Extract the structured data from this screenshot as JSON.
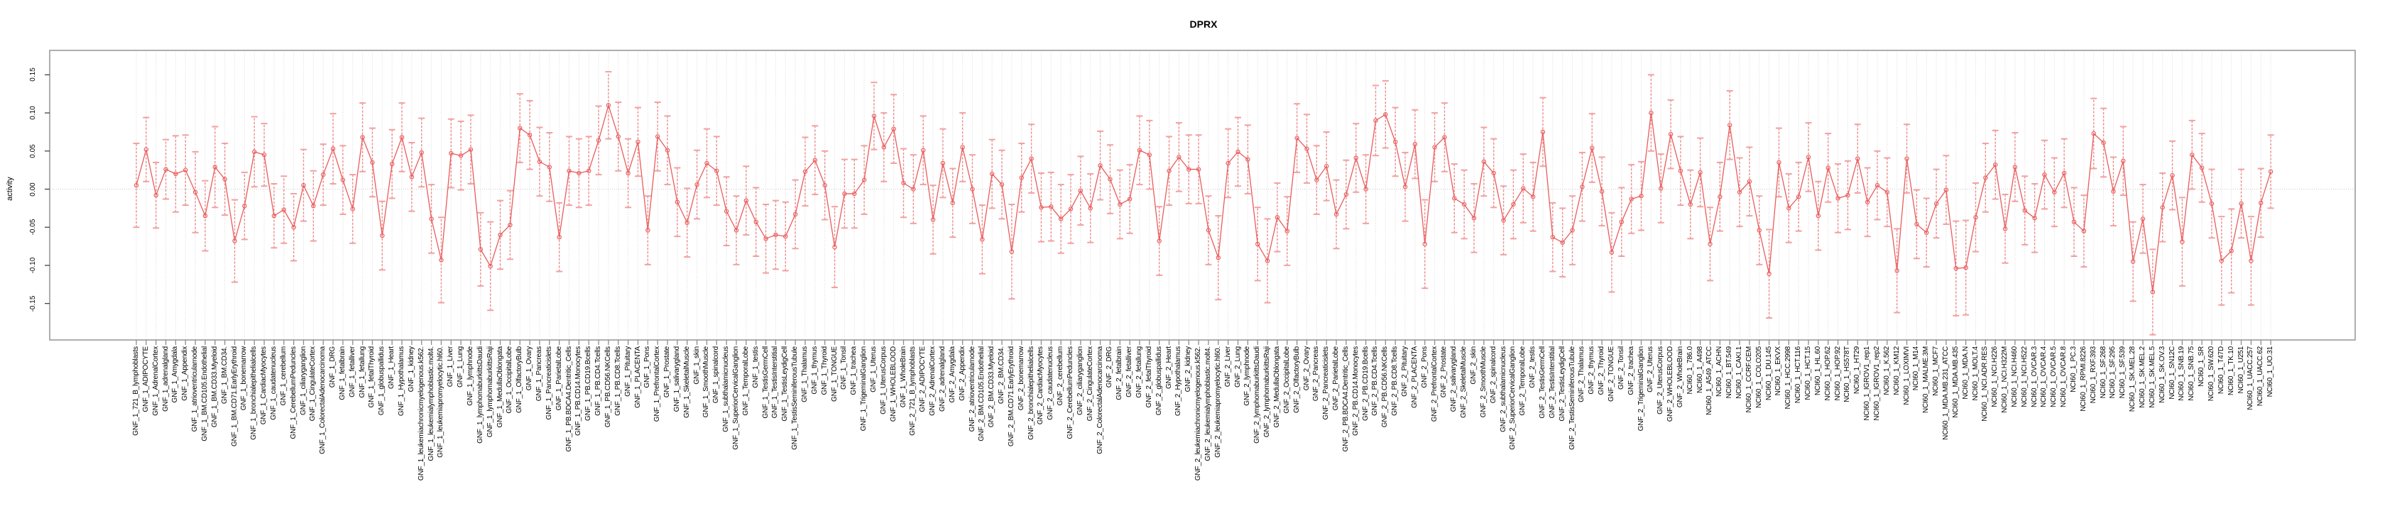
{
  "title": "DPRX",
  "chart_data": {
    "type": "line",
    "title": "DPRX",
    "xlabel": "",
    "ylabel": "activity",
    "ylim": [
      -0.198,
      0.182
    ],
    "yticks": [
      0.15,
      0.1,
      0.05,
      0.0,
      -0.05,
      -0.1,
      -0.15
    ],
    "ytick_labels": [
      "0.15",
      "0.10",
      "0.05",
      "0.00",
      "-0.05",
      "-0.10",
      "-0.15"
    ],
    "grid": "vertical dotted gridline per category; dotted horizontal line at y=0",
    "legend": "none",
    "marker": "open-circle",
    "error_bars": true,
    "colors": {
      "line": "#e95c5c",
      "marker": "#e95c5c",
      "error_bar": "#f2a0a0",
      "error_stem": "#ef8b8b",
      "grid": "#d9d9d9",
      "zero_line": "#c9c9c9",
      "box": "#9a9a9a",
      "x_tick": "#8c8c8c",
      "y_tick": "#444444",
      "text": "#000000",
      "background": "#ffffff"
    },
    "categories": [
      "GNF_1_721_B_lymphoblasts",
      "GNF_1_ADIPOCYTE",
      "GNF_1_AdrenalCortex",
      "GNF_1_adrenalgland",
      "GNF_1_Amygdala",
      "GNF_1_Appendix",
      "GNF_1_atrioventricularnode",
      "GNF_1_BM.CD105.Endothelial",
      "GNF_1_BM.CD33.Myeloid",
      "GNF_1_BM.CD34.",
      "GNF_1_BM.CD71.EarlyErythroid",
      "GNF_1_bonemarrow",
      "GNF_1_bronchialepithelialcells",
      "GNF_1_CardiacMyocytes",
      "GNF_1_caudatenucleus",
      "GNF_1_cerebellum",
      "GNF_1_CerebellumPeduncles",
      "GNF_1_ciliaryganglion",
      "GNF_1_CingulateCortex",
      "GNF_1_ColorectalAdenocarcinoma",
      "GNF_1_DRG",
      "GNF_1_fetalbrain",
      "GNF_1_fetalliver",
      "GNF_1_fetallung",
      "GNF_1_fetalThyroid",
      "GNF_1_globuspallidus",
      "GNF_1_Heart",
      "GNF_1_Hypothalamus",
      "GNF_1_kidney",
      "GNF_1_leukemiachronicmyelogenous.k562.",
      "GNF_1_leukemialymphoblastic.molt4.",
      "GNF_1_leukemiapromyelocytic.hl60.",
      "GNF_1_Liver",
      "GNF_1_Lung",
      "GNF_1_lymphnode",
      "GNF_1_lymphomaburkittsDaudi",
      "GNF_1_lymphomaburkittsRaji",
      "GNF_1_MedullaOblongata",
      "GNF_1_OccipitalLobe",
      "GNF_1_OlfactoryBulb",
      "GNF_1_Ovary",
      "GNF_1_Pancreas",
      "GNF_1_Pancreaticislets",
      "GNF_1_ParietalLobe",
      "GNF_1_PB.BDCA4.Dentritic_Cells",
      "GNF_1_PB.CD14.Monocytes",
      "GNF_1_PB.CD19.Bcells",
      "GNF_1_PB.CD4.Tcells",
      "GNF_1_PB.CD56.NKCells",
      "GNF_1_PB.CD8.Tcells",
      "GNF_1_Pituitary",
      "GNF_1_PLACENTA",
      "GNF_1_Pons",
      "GNF_1_PrefrontalCortex",
      "GNF_1_Prostate",
      "GNF_1_salivarygland",
      "GNF_1_SkeletalMuscle",
      "GNF_1_skin",
      "GNF_1_SmoothMuscle",
      "GNF_1_spinalcord",
      "GNF_1_subthalamicnucleus",
      "GNF_1_SuperiorCervicalGanglion",
      "GNF_1_TemporalLobe",
      "GNF_1_testis",
      "GNF_1_TestisGermCell",
      "GNF_1_TestisInterstitial",
      "GNF_1_TestisLeydigCell",
      "GNF_1_TestisSeminiferousTubule",
      "GNF_1_Thalamus",
      "GNF_1_thymus",
      "GNF_1_Thyroid",
      "GNF_1_TONGUE",
      "GNF_1_Tonsil",
      "GNF_1_trachea",
      "GNF_1_TrigeminalGanglion",
      "GNF_1_Uterus",
      "GNF_1_UterusCorpus",
      "GNF_1_WHOLEBLOOD",
      "GNF_1_WholeBrain",
      "GNF_2_721_B_lymphoblasts",
      "GNF_2_ADIPOCYTE",
      "GNF_2_AdrenalCortex",
      "GNF_2_adrenalgland",
      "GNF_2_Amygdala",
      "GNF_2_Appendix",
      "GNF_2_atrioventricularnode",
      "GNF_2_BM.CD105.Endothelial",
      "GNF_2_BM.CD33.Myeloid",
      "GNF_2_BM.CD34.",
      "GNF_2_BM.CD71.EarlyErythroid",
      "GNF_2_bonemarrow",
      "GNF_2_bronchialepithelialcells",
      "GNF_2_CardiacMyocytes",
      "GNF_2_caudatenucleus",
      "GNF_2_cerebellum",
      "GNF_2_CerebellumPeduncles",
      "GNF_2_ciliaryganglion",
      "GNF_2_CingulateCortex",
      "GNF_2_ColorectalAdenocarcinoma",
      "GNF_2_DRG",
      "GNF_2_fetalbrain",
      "GNF_2_fetalliver",
      "GNF_2_fetallung",
      "GNF_2_fetalThyroid",
      "GNF_2_globuspallidus",
      "GNF_2_Heart",
      "GNF_2_Hypothalamus",
      "GNF_2_kidney",
      "GNF_2_leukemiachronicmyelogenous.k562.",
      "GNF_2_leukemialymphoblastic.molt4.",
      "GNF_2_leukemiapromyelocytic.hl60.",
      "GNF_2_Liver",
      "GNF_2_Lung",
      "GNF_2_lymphnode",
      "GNF_2_lymphomaburkittsDaudi",
      "GNF_2_lymphomaburkittsRaji",
      "GNF_2_MedullaOblongata",
      "GNF_2_OccipitalLobe",
      "GNF_2_OlfactoryBulb",
      "GNF_2_Ovary",
      "GNF_2_Pancreas",
      "GNF_2_Pancreaticislets",
      "GNF_2_ParietalLobe",
      "GNF_2_PB.BDCA4.Dentritic_Cells",
      "GNF_2_PB.CD14.Monocytes",
      "GNF_2_PB.CD19.Bcells",
      "GNF_2_PB.CD4.Tcells",
      "GNF_2_PB.CD56.NKCells",
      "GNF_2_PB.CD8.Tcells",
      "GNF_2_Pituitary",
      "GNF_2_PLACENTA",
      "GNF_2_Pons",
      "GNF_2_PrefrontalCortex",
      "GNF_2_Prostate",
      "GNF_2_salivarygland",
      "GNF_2_SkeletalMuscle",
      "GNF_2_skin",
      "GNF_2_SmoothMuscle",
      "GNF_2_spinalcord",
      "GNF_2_subthalamicnucleus",
      "GNF_2_SuperiorCervicalGanglion",
      "GNF_2_TemporalLobe",
      "GNF_2_testis",
      "GNF_2_TestisGermCell",
      "GNF_2_TestisInterstitial",
      "GNF_2_TestisLeydigCell",
      "GNF_2_TestisSeminiferousTubule",
      "GNF_2_Thalamus",
      "GNF_2_thymus",
      "GNF_2_Thyroid",
      "GNF_2_TONGUE",
      "GNF_2_Tonsil",
      "GNF_2_trachea",
      "GNF_2_TrigeminalGanglion",
      "GNF_2_Uterus",
      "GNF_2_UterusCorpus",
      "GNF_2_WHOLEBLOOD",
      "GNF_2_WholeBrain",
      "NCI60_1_786.0",
      "NCI60_1_A498",
      "NCI60_1_A549_ATCC",
      "NCI60_1_ACHN",
      "NCI60_1_BT.549",
      "NCI60_1_CAKI.1",
      "NCI60_1_CCRF.CEM",
      "NCI60_1_COLO205",
      "NCI60_1_DU.145",
      "NCI60_1_EKVX",
      "NCI60_1_HCC.2998",
      "NCI60_1_HCT.116",
      "NCI60_1_HCT.15",
      "NCI60_1_HL.60",
      "NCI60_1_HOP.62",
      "NCI60_1_HOP.92",
      "NCI60_1_HS578T",
      "NCI60_1_HT29",
      "NCI60_1_IGROV1_rep1",
      "NCI60_1_IGROV1_rep2",
      "NCI60_1_K.562",
      "NCI60_1_KM12",
      "NCI60_1_LOXIMVI",
      "NCI60_1_M14",
      "NCI60_1_MALME.3M",
      "NCI60_1_MCF7",
      "NCI60_1_MDA.MB.231_ATCC",
      "NCI60_1_MDA.MB.435",
      "NCI60_1_MDA.N",
      "NCI60_1_MOLT.4",
      "NCI60_1_NCI.ADR.RES",
      "NCI60_1_NCI.H226",
      "NCI60_1_NCI.H322M",
      "NCI60_1_NCI.H460",
      "NCI60_1_NCI.H522",
      "NCI60_1_OVCAR.3",
      "NCI60_1_OVCAR.4",
      "NCI60_1_OVCAR.5",
      "NCI60_1_OVCAR.8",
      "NCI60_1_PC.3",
      "NCI60_1_RPMI.8226",
      "NCI60_1_RXF.393",
      "NCI60_1_SF.268",
      "NCI60_1_SF.295",
      "NCI60_1_SF.539",
      "NCI60_1_SK.MEL.28",
      "NCI60_1_SK.MEL.2",
      "NCI60_1_SK.MEL.5",
      "NCI60_1_SK.OV.3",
      "NCI60_1_SN12C",
      "NCI60_1_SNB.19",
      "NCI60_1_SNB.75",
      "NCI60_1_SR",
      "NCI60_1_SW.620",
      "NCI60_1_T47D",
      "NCI60_1_TK.10",
      "NCI60_1_U251",
      "NCI60_1_UACC.257",
      "NCI60_1_UACC.62",
      "NCI60_1_UO.31"
    ],
    "values": [
      0.005,
      0.052,
      -0.008,
      0.026,
      0.02,
      0.025,
      -0.004,
      -0.035,
      0.029,
      0.013,
      -0.068,
      -0.022,
      0.049,
      0.045,
      -0.035,
      -0.027,
      -0.05,
      0.005,
      -0.022,
      0.019,
      0.053,
      0.012,
      -0.026,
      0.068,
      0.035,
      -0.061,
      0.033,
      0.068,
      0.016,
      0.048,
      -0.039,
      -0.093,
      0.047,
      0.044,
      0.052,
      -0.079,
      -0.101,
      -0.06,
      -0.047,
      0.08,
      0.071,
      0.036,
      0.029,
      -0.063,
      0.024,
      0.021,
      0.024,
      0.064,
      0.11,
      0.069,
      0.021,
      0.062,
      -0.054,
      0.069,
      0.051,
      -0.017,
      -0.044,
      0.006,
      0.034,
      0.024,
      -0.029,
      -0.054,
      -0.015,
      -0.043,
      -0.065,
      -0.06,
      -0.062,
      -0.033,
      0.023,
      0.038,
      0.005,
      -0.076,
      -0.006,
      -0.006,
      0.012,
      0.096,
      0.055,
      0.079,
      0.008,
      0.0,
      0.051,
      -0.04,
      0.034,
      -0.018,
      0.055,
      0.0,
      -0.066,
      0.02,
      0.006,
      -0.082,
      0.015,
      0.04,
      -0.024,
      -0.023,
      -0.039,
      -0.026,
      -0.002,
      -0.025,
      0.031,
      0.013,
      -0.02,
      -0.013,
      0.051,
      0.045,
      -0.068,
      0.024,
      0.042,
      0.026,
      0.026,
      -0.054,
      -0.09,
      0.034,
      0.049,
      0.039,
      -0.072,
      -0.094,
      -0.037,
      -0.055,
      0.067,
      0.053,
      0.012,
      0.03,
      -0.033,
      -0.007,
      0.041,
      0.0,
      0.09,
      0.098,
      0.062,
      0.003,
      0.059,
      -0.072,
      0.055,
      0.068,
      -0.012,
      -0.02,
      -0.038,
      0.036,
      0.021,
      -0.041,
      -0.02,
      0.001,
      -0.01,
      0.075,
      -0.063,
      -0.07,
      -0.054,
      0.003,
      0.054,
      -0.003,
      -0.083,
      -0.043,
      -0.013,
      -0.009,
      0.1,
      0.001,
      0.072,
      0.024,
      -0.02,
      0.022,
      -0.072,
      -0.01,
      0.084,
      -0.004,
      0.01,
      -0.054,
      -0.111,
      0.035,
      -0.025,
      -0.01,
      0.042,
      -0.035,
      0.028,
      -0.012,
      -0.008,
      0.04,
      -0.017,
      0.005,
      -0.004,
      -0.107,
      0.04,
      -0.046,
      -0.057,
      -0.019,
      -0.001,
      -0.104,
      -0.103,
      -0.037,
      0.015,
      0.032,
      -0.052,
      0.029,
      -0.028,
      -0.038,
      0.019,
      -0.004,
      0.021,
      -0.043,
      -0.055,
      0.073,
      0.061,
      -0.003,
      0.037,
      -0.095,
      -0.039,
      -0.135,
      -0.024,
      0.018,
      -0.069,
      0.045,
      0.028,
      -0.019,
      -0.094,
      -0.081,
      -0.019,
      -0.094,
      -0.018,
      0.023
    ],
    "errors": [
      0.055,
      0.042,
      0.043,
      0.039,
      0.05,
      0.046,
      0.053,
      0.046,
      0.053,
      0.047,
      0.054,
      0.044,
      0.046,
      0.041,
      0.042,
      0.044,
      0.044,
      0.047,
      0.046,
      0.04,
      0.046,
      0.045,
      0.045,
      0.045,
      0.045,
      0.045,
      0.045,
      0.045,
      0.045,
      0.045,
      0.045,
      0.056,
      0.045,
      0.045,
      0.045,
      0.048,
      0.058,
      0.045,
      0.045,
      0.045,
      0.045,
      0.045,
      0.045,
      0.045,
      0.045,
      0.045,
      0.045,
      0.045,
      0.044,
      0.045,
      0.045,
      0.045,
      0.045,
      0.045,
      0.045,
      0.045,
      0.045,
      0.045,
      0.045,
      0.045,
      0.045,
      0.045,
      0.045,
      0.045,
      0.045,
      0.045,
      0.045,
      0.045,
      0.045,
      0.045,
      0.045,
      0.053,
      0.045,
      0.045,
      0.045,
      0.044,
      0.045,
      0.045,
      0.045,
      0.045,
      0.045,
      0.045,
      0.045,
      0.045,
      0.045,
      0.045,
      0.045,
      0.045,
      0.045,
      0.062,
      0.045,
      0.045,
      0.045,
      0.045,
      0.045,
      0.045,
      0.045,
      0.045,
      0.045,
      0.045,
      0.045,
      0.045,
      0.045,
      0.045,
      0.045,
      0.045,
      0.045,
      0.045,
      0.045,
      0.045,
      0.055,
      0.045,
      0.045,
      0.045,
      0.048,
      0.055,
      0.045,
      0.045,
      0.045,
      0.045,
      0.045,
      0.045,
      0.045,
      0.045,
      0.045,
      0.045,
      0.046,
      0.044,
      0.045,
      0.045,
      0.045,
      0.058,
      0.045,
      0.045,
      0.045,
      0.045,
      0.045,
      0.045,
      0.045,
      0.045,
      0.045,
      0.045,
      0.045,
      0.045,
      0.045,
      0.045,
      0.045,
      0.045,
      0.045,
      0.045,
      0.052,
      0.045,
      0.045,
      0.045,
      0.05,
      0.045,
      0.045,
      0.045,
      0.045,
      0.045,
      0.048,
      0.045,
      0.045,
      0.045,
      0.045,
      0.045,
      0.058,
      0.045,
      0.045,
      0.045,
      0.045,
      0.045,
      0.045,
      0.045,
      0.045,
      0.045,
      0.045,
      0.045,
      0.045,
      0.055,
      0.045,
      0.045,
      0.045,
      0.045,
      0.045,
      0.062,
      0.062,
      0.045,
      0.045,
      0.045,
      0.045,
      0.045,
      0.045,
      0.045,
      0.045,
      0.045,
      0.045,
      0.045,
      0.047,
      0.046,
      0.045,
      0.045,
      0.045,
      0.052,
      0.045,
      0.056,
      0.045,
      0.045,
      0.058,
      0.045,
      0.045,
      0.045,
      0.058,
      0.055,
      0.045,
      0.058,
      0.045,
      0.048
    ]
  }
}
